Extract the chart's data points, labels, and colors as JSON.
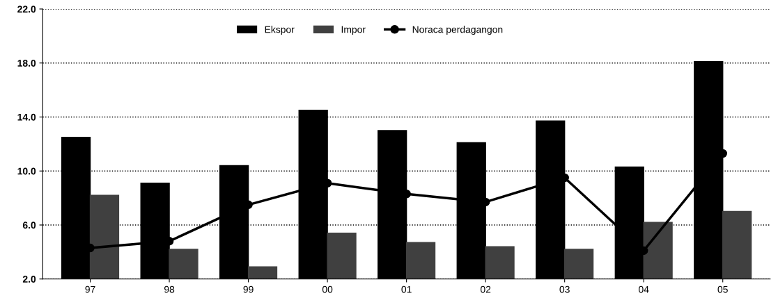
{
  "chart_data": {
    "type": "bar",
    "categories": [
      "97",
      "98",
      "99",
      "00",
      "01",
      "02",
      "03",
      "04",
      "05"
    ],
    "series": [
      {
        "name": "Ekspor",
        "color": "#000000",
        "values": [
          12.5,
          9.1,
          10.4,
          14.5,
          13.0,
          12.1,
          13.7,
          10.3,
          18.1
        ]
      },
      {
        "name": "Impor",
        "color": "#404040",
        "values": [
          8.2,
          4.2,
          2.9,
          5.4,
          4.7,
          4.4,
          4.2,
          6.2,
          7.0
        ]
      },
      {
        "name": "Noraca perdagangon",
        "type": "line",
        "color": "#000000",
        "marker": "circle",
        "values": [
          4.3,
          4.8,
          7.5,
          9.1,
          8.3,
          7.7,
          9.5,
          4.1,
          11.3
        ]
      }
    ],
    "ylim": [
      2.0,
      22.0
    ],
    "yticks": [
      {
        "value": 2,
        "label": "2.0"
      },
      {
        "value": 6,
        "label": "6.0"
      },
      {
        "value": 10,
        "label": "10.0"
      },
      {
        "value": 14,
        "label": "14.0"
      },
      {
        "value": 18,
        "label": "18.0"
      },
      {
        "value": 22,
        "label": "22.0"
      }
    ],
    "grid": "y",
    "legend": "top"
  }
}
